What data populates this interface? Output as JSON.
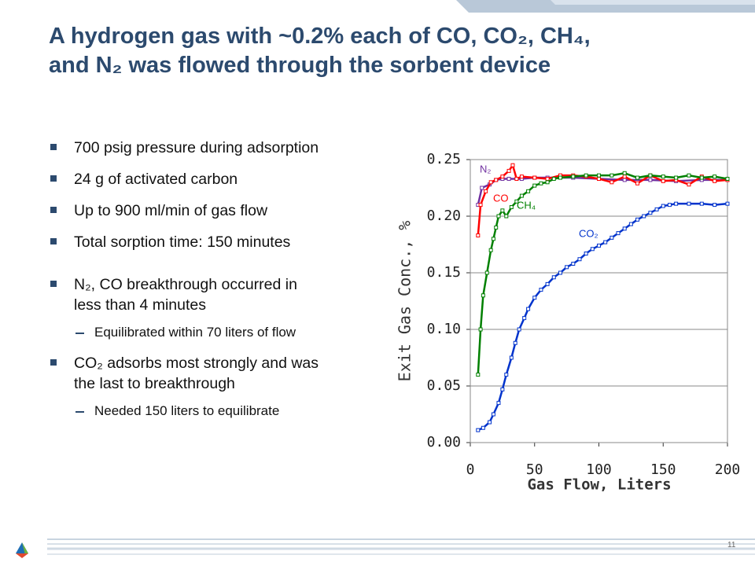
{
  "title_lines": [
    "A hydrogen gas with ~0.2% each of CO, CO₂, CH₄,",
    "and N₂ was flowed through the sorbent device"
  ],
  "bullets": [
    {
      "lines": [
        "700 psig pressure during adsorption"
      ]
    },
    {
      "lines": [
        "24 g of activated carbon"
      ]
    },
    {
      "lines": [
        "Up to 900 ml/min of gas flow"
      ]
    },
    {
      "lines": [
        "Total sorption time: 150 minutes"
      ]
    },
    {
      "lines": [
        "N₂, CO breakthrough occurred in",
        "less than 4 minutes"
      ],
      "sub_bullets": [
        "Equilibrated within 70 liters of flow"
      ]
    },
    {
      "lines": [
        "CO₂ adsorbs most strongly and was",
        "the last to breakthrough"
      ],
      "sub_bullets": [
        "Needed 150 liters to equilibrate"
      ]
    }
  ],
  "page_number": "11",
  "chart_data": {
    "type": "line",
    "x_label": "Gas Flow, Liters",
    "y_label": "Exit Gas Conc., %",
    "xlim": [
      0,
      200
    ],
    "xticks": [
      0,
      50,
      100,
      150,
      200
    ],
    "ylim": [
      0,
      0.25
    ],
    "yticks": [
      {
        "value": 0,
        "label": "0.00"
      },
      0.05,
      {
        "value": 0.1,
        "label": "0.10"
      },
      0.15,
      {
        "value": 0.2,
        "label": "0.20"
      },
      0.25
    ],
    "grid": true,
    "series": [
      {
        "name": "N₂",
        "color": "#7030a0",
        "x": [
          6,
          9,
          15,
          20,
          25,
          30,
          40,
          50,
          60,
          80,
          100,
          120,
          140,
          160,
          180,
          200
        ],
        "values": [
          0.21,
          0.225,
          0.228,
          0.232,
          0.233,
          0.233,
          0.233,
          0.234,
          0.234,
          0.234,
          0.233,
          0.232,
          0.232,
          0.231,
          0.232,
          0.232
        ]
      },
      {
        "name": "CO",
        "color": "#ff0000",
        "x": [
          6,
          8,
          12,
          16,
          20,
          25,
          30,
          33,
          36,
          40,
          50,
          60,
          70,
          80,
          90,
          100,
          110,
          120,
          130,
          140,
          150,
          160,
          170,
          180,
          190,
          200
        ],
        "values": [
          0.183,
          0.21,
          0.222,
          0.23,
          0.232,
          0.235,
          0.24,
          0.245,
          0.233,
          0.235,
          0.234,
          0.233,
          0.236,
          0.236,
          0.235,
          0.233,
          0.23,
          0.235,
          0.229,
          0.236,
          0.231,
          0.232,
          0.228,
          0.235,
          0.231,
          0.232
        ]
      },
      {
        "name": "CH₄",
        "color": "#008000",
        "x": [
          6,
          8,
          10,
          13,
          16,
          18,
          20,
          22,
          25,
          28,
          32,
          36,
          40,
          45,
          50,
          55,
          60,
          65,
          70,
          80,
          90,
          100,
          110,
          120,
          130,
          140,
          150,
          160,
          170,
          180,
          190,
          200
        ],
        "values": [
          0.06,
          0.1,
          0.13,
          0.15,
          0.17,
          0.18,
          0.19,
          0.2,
          0.205,
          0.2,
          0.208,
          0.213,
          0.218,
          0.222,
          0.227,
          0.229,
          0.23,
          0.233,
          0.234,
          0.235,
          0.236,
          0.236,
          0.236,
          0.238,
          0.234,
          0.236,
          0.235,
          0.234,
          0.236,
          0.234,
          0.235,
          0.233
        ]
      },
      {
        "name": "CO₂",
        "color": "#0033cc",
        "x": [
          6,
          10,
          15,
          18,
          22,
          25,
          28,
          32,
          35,
          38,
          42,
          45,
          50,
          55,
          60,
          65,
          70,
          75,
          80,
          85,
          90,
          95,
          100,
          105,
          110,
          115,
          120,
          125,
          130,
          135,
          140,
          145,
          150,
          155,
          160,
          170,
          180,
          190,
          200
        ],
        "values": [
          0.011,
          0.013,
          0.018,
          0.025,
          0.035,
          0.047,
          0.06,
          0.075,
          0.088,
          0.1,
          0.11,
          0.118,
          0.128,
          0.135,
          0.14,
          0.146,
          0.15,
          0.155,
          0.158,
          0.162,
          0.167,
          0.171,
          0.174,
          0.177,
          0.181,
          0.185,
          0.189,
          0.193,
          0.197,
          0.2,
          0.203,
          0.206,
          0.209,
          0.21,
          0.211,
          0.211,
          0.211,
          0.21,
          0.211
        ]
      }
    ]
  }
}
